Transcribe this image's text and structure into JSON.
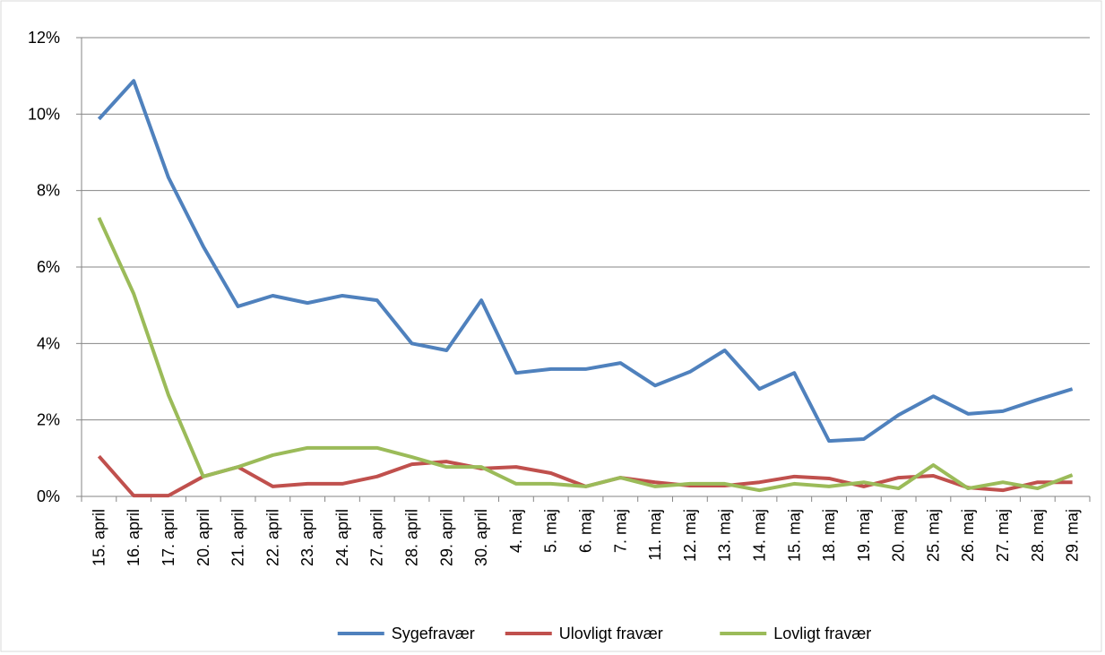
{
  "chart_data": {
    "type": "line",
    "categories": [
      "15. april",
      "16. april",
      "17. april",
      "20. april",
      "21. april",
      "22. april",
      "23. april",
      "24. april",
      "27. april",
      "28. april",
      "29. april",
      "30. april",
      "4. maj",
      "5. maj",
      "6. maj",
      "7. maj",
      "11. maj",
      "12. maj",
      "13. maj",
      "14. maj",
      "15. maj",
      "18. maj",
      "19. maj",
      "20. maj",
      "25. maj",
      "26. maj",
      "27. maj",
      "28. maj",
      "29. maj"
    ],
    "series": [
      {
        "name": "Sygefravær",
        "color": "#4f81bd",
        "values": [
          9.87,
          10.87,
          8.34,
          6.54,
          4.97,
          5.25,
          5.06,
          5.25,
          5.13,
          4.0,
          3.82,
          5.13,
          3.23,
          3.33,
          3.33,
          3.49,
          2.9,
          3.26,
          3.82,
          2.81,
          3.23,
          1.45,
          1.5,
          2.13,
          2.62,
          2.16,
          2.23,
          2.53,
          2.81
        ]
      },
      {
        "name": "Ulovligt fravær",
        "color": "#c0504d",
        "values": [
          1.05,
          0.02,
          0.02,
          0.52,
          0.77,
          0.26,
          0.33,
          0.33,
          0.52,
          0.84,
          0.91,
          0.73,
          0.77,
          0.61,
          0.26,
          0.49,
          0.37,
          0.28,
          0.28,
          0.37,
          0.52,
          0.47,
          0.26,
          0.49,
          0.54,
          0.23,
          0.16,
          0.37,
          0.37
        ]
      },
      {
        "name": "Lovligt fravær",
        "color": "#9bbb59",
        "values": [
          7.29,
          5.3,
          2.65,
          0.52,
          0.77,
          1.08,
          1.27,
          1.27,
          1.27,
          1.03,
          0.77,
          0.77,
          0.33,
          0.33,
          0.26,
          0.49,
          0.26,
          0.33,
          0.33,
          0.16,
          0.33,
          0.26,
          0.37,
          0.21,
          0.82,
          0.21,
          0.37,
          0.21,
          0.56
        ]
      }
    ],
    "ylim": [
      0,
      12
    ],
    "yticks": [
      {
        "value": 0,
        "label": "0%"
      },
      {
        "value": 2,
        "label": "2%"
      },
      {
        "value": 4,
        "label": "4%"
      },
      {
        "value": 6,
        "label": "6%"
      },
      {
        "value": 8,
        "label": "8%"
      },
      {
        "value": 10,
        "label": "10%"
      },
      {
        "value": 12,
        "label": "12%"
      }
    ],
    "grid": true,
    "legend": "bottom"
  }
}
